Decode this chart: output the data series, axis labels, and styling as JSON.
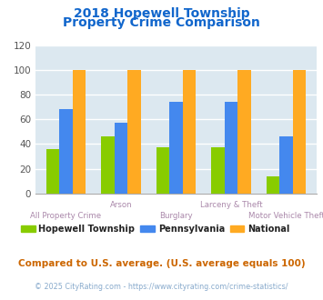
{
  "title_line1": "2018 Hopewell Township",
  "title_line2": "Property Crime Comparison",
  "categories": [
    "All Property Crime",
    "Arson",
    "Burglary",
    "Larceny & Theft",
    "Motor Vehicle Theft"
  ],
  "hopewell": [
    36,
    46,
    37,
    37,
    14
  ],
  "pennsylvania": [
    68,
    57,
    74,
    74,
    46
  ],
  "national": [
    100,
    100,
    100,
    100,
    100
  ],
  "colors": {
    "hopewell": "#88cc00",
    "pennsylvania": "#4488ee",
    "national": "#ffaa22"
  },
  "ylim": [
    0,
    120
  ],
  "yticks": [
    0,
    20,
    40,
    60,
    80,
    100,
    120
  ],
  "plot_bg": "#dce8f0",
  "title_color": "#1166cc",
  "xlabel_color": "#aa88aa",
  "legend_labels": [
    "Hopewell Township",
    "Pennsylvania",
    "National"
  ],
  "footnote1": "Compared to U.S. average. (U.S. average equals 100)",
  "footnote2": "© 2025 CityRating.com - https://www.cityrating.com/crime-statistics/",
  "footnote1_color": "#cc6600",
  "footnote2_color": "#88aacc"
}
